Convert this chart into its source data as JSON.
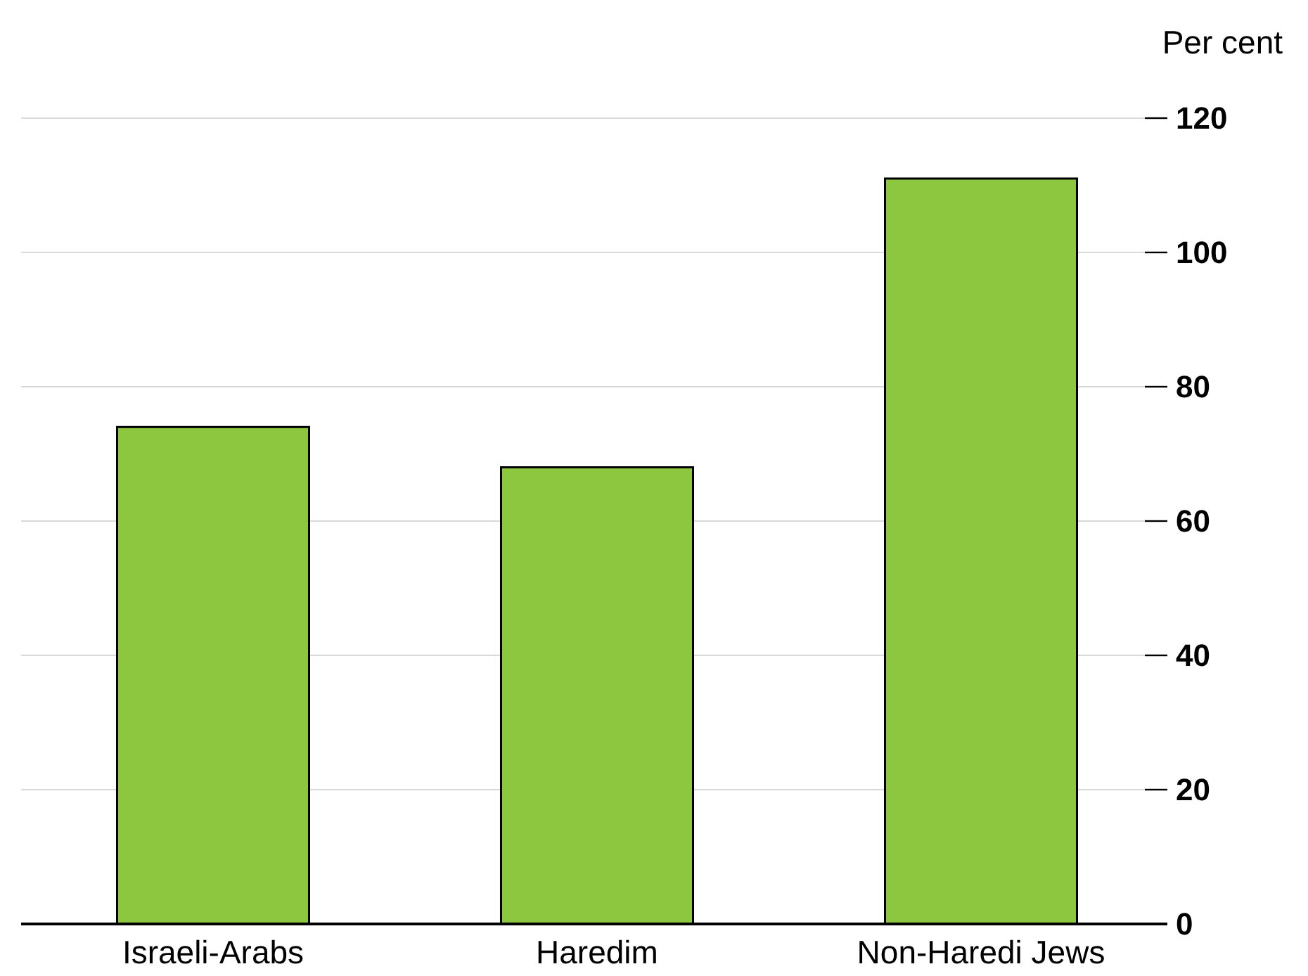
{
  "chart_data": {
    "type": "bar",
    "ylabel": "Per cent",
    "categories": [
      "Israeli-Arabs",
      "Haredim",
      "Non-Haredi Jews"
    ],
    "values": [
      74,
      68,
      111
    ],
    "color": "#8dc63f",
    "ylim": [
      0,
      120
    ],
    "yticks": [
      0,
      20,
      40,
      60,
      80,
      100,
      120
    ],
    "grid": "y"
  }
}
